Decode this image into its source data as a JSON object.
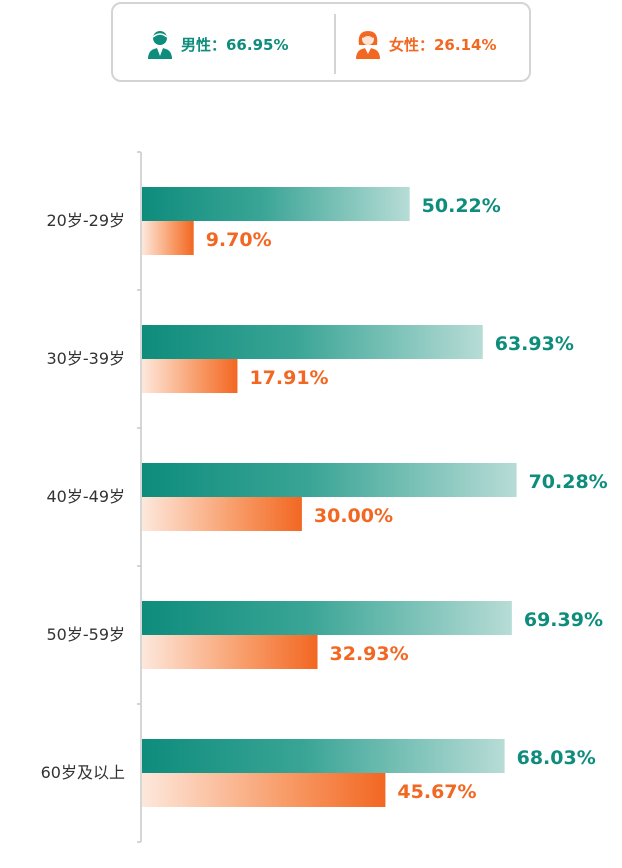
{
  "legend": {
    "male_label": "男性：66.95%",
    "female_label": "女性：26.14%",
    "male_color": "#0e8c7c",
    "female_color": "#f26722",
    "male_icon": "male-person-icon",
    "female_icon": "female-person-icon"
  },
  "chart_data": {
    "type": "bar",
    "orientation": "horizontal",
    "categories": [
      "20岁-29岁",
      "30岁-39岁",
      "40岁-49岁",
      "50岁-59岁",
      "60岁及以上"
    ],
    "series": [
      {
        "name": "男性",
        "values": [
          50.22,
          63.93,
          70.28,
          69.39,
          68.03
        ],
        "labels": [
          "50.22%",
          "63.93%",
          "70.28%",
          "69.39%",
          "68.03%"
        ],
        "color": "#0e8c7c"
      },
      {
        "name": "女性",
        "values": [
          9.7,
          17.91,
          30.0,
          32.93,
          45.67
        ],
        "labels": [
          "9.70%",
          "17.91%",
          "30.00%",
          "32.93%",
          "45.67%"
        ],
        "color": "#f26722"
      }
    ],
    "xlim": [
      0,
      100
    ],
    "grid": false,
    "legend_position": "top"
  }
}
